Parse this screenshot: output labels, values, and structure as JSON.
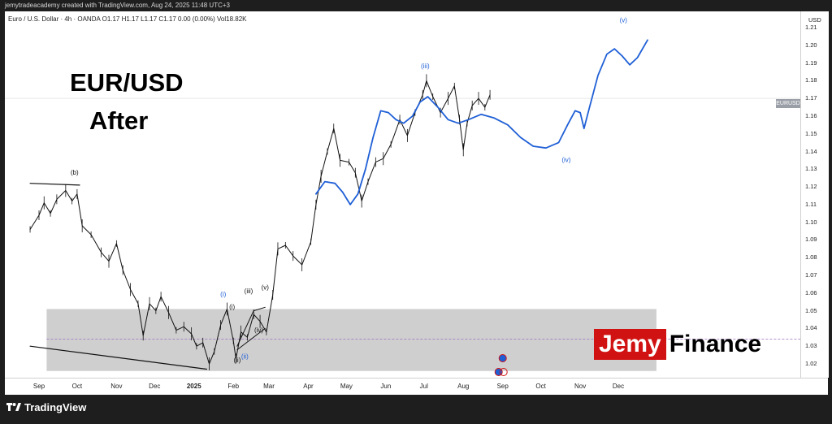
{
  "caption": "jemytradeacademy created with TradingView.com, Aug 24, 2025 11:48 UTC+3",
  "symbol_line": "Euro / U.S. Dollar · 4h · OANDA  O1.17  H1.17  L1.17  C1.17  0.00 (0.00%)  Vol18.82K",
  "headline": {
    "pair": "EUR/USD",
    "word": "After"
  },
  "brand": {
    "left": "Jemy",
    "right": "Finance"
  },
  "platform_name": "TradingView",
  "symbol_tag": "EURUSD",
  "colors": {
    "wave_blue": "#1f5fd6",
    "price_black": "#111111",
    "zone_gray": "#cfcfcf",
    "brand_red": "#d11212"
  },
  "chart_data": {
    "type": "line",
    "price_axis_unit": "USD",
    "ylim": [
      1.015,
      1.22
    ],
    "y_ticks": [
      "1.21",
      "1.20",
      "1.19",
      "1.18",
      "1.17",
      "1.16",
      "1.15",
      "1.14",
      "1.13",
      "1.12",
      "1.11",
      "1.10",
      "1.09",
      "1.08",
      "1.07",
      "1.06",
      "1.05",
      "1.04",
      "1.03",
      "1.02"
    ],
    "x_ticks": [
      "Sep",
      "Oct",
      "Nov",
      "Dec",
      "2025",
      "Feb",
      "Mar",
      "Apr",
      "May",
      "Jun",
      "Jul",
      "Aug",
      "Sep",
      "Oct",
      "Nov",
      "Dec"
    ],
    "x_ticks_bold": [
      "2025"
    ],
    "series": [
      {
        "role": "price",
        "points": [
          [
            "2024-08-25",
            1.096
          ],
          [
            "2024-09-01",
            1.104
          ],
          [
            "2024-09-05",
            1.111
          ],
          [
            "2024-09-10",
            1.105
          ],
          [
            "2024-09-15",
            1.113
          ],
          [
            "2024-09-22",
            1.118
          ],
          [
            "2024-09-27",
            1.112
          ],
          [
            "2024-10-01",
            1.116
          ],
          [
            "2024-10-05",
            1.098
          ],
          [
            "2024-10-12",
            1.093
          ],
          [
            "2024-10-20",
            1.083
          ],
          [
            "2024-10-26",
            1.078
          ],
          [
            "2024-11-01",
            1.088
          ],
          [
            "2024-11-06",
            1.073
          ],
          [
            "2024-11-12",
            1.062
          ],
          [
            "2024-11-18",
            1.054
          ],
          [
            "2024-11-22",
            1.036
          ],
          [
            "2024-11-27",
            1.054
          ],
          [
            "2024-12-02",
            1.05
          ],
          [
            "2024-12-06",
            1.058
          ],
          [
            "2024-12-12",
            1.049
          ],
          [
            "2024-12-18",
            1.039
          ],
          [
            "2024-12-24",
            1.041
          ],
          [
            "2024-12-30",
            1.037
          ],
          [
            "2025-01-03",
            1.03
          ],
          [
            "2025-01-08",
            1.032
          ],
          [
            "2025-01-13",
            1.02
          ],
          [
            "2025-01-17",
            1.027
          ],
          [
            "2025-01-22",
            1.042
          ],
          [
            "2025-01-27",
            1.051
          ],
          [
            "2025-02-01",
            1.033
          ],
          [
            "2025-02-03",
            1.023
          ],
          [
            "2025-02-07",
            1.038
          ],
          [
            "2025-02-12",
            1.035
          ],
          [
            "2025-02-17",
            1.048
          ],
          [
            "2025-02-22",
            1.044
          ],
          [
            "2025-02-27",
            1.038
          ],
          [
            "2025-03-04",
            1.059
          ],
          [
            "2025-03-08",
            1.085
          ],
          [
            "2025-03-14",
            1.087
          ],
          [
            "2025-03-20",
            1.081
          ],
          [
            "2025-03-27",
            1.076
          ],
          [
            "2025-04-03",
            1.089
          ],
          [
            "2025-04-07",
            1.11
          ],
          [
            "2025-04-11",
            1.126
          ],
          [
            "2025-04-16",
            1.14
          ],
          [
            "2025-04-21",
            1.153
          ],
          [
            "2025-04-26",
            1.135
          ],
          [
            "2025-05-03",
            1.134
          ],
          [
            "2025-05-08",
            1.128
          ],
          [
            "2025-05-13",
            1.112
          ],
          [
            "2025-05-18",
            1.123
          ],
          [
            "2025-05-24",
            1.134
          ],
          [
            "2025-05-30",
            1.136
          ],
          [
            "2025-06-05",
            1.144
          ],
          [
            "2025-06-12",
            1.158
          ],
          [
            "2025-06-18",
            1.149
          ],
          [
            "2025-06-24",
            1.162
          ],
          [
            "2025-06-30",
            1.172
          ],
          [
            "2025-07-03",
            1.18
          ],
          [
            "2025-07-08",
            1.171
          ],
          [
            "2025-07-14",
            1.162
          ],
          [
            "2025-07-20",
            1.17
          ],
          [
            "2025-07-25",
            1.177
          ],
          [
            "2025-07-29",
            1.158
          ],
          [
            "2025-08-01",
            1.141
          ],
          [
            "2025-08-04",
            1.156
          ],
          [
            "2025-08-08",
            1.166
          ],
          [
            "2025-08-13",
            1.17
          ],
          [
            "2025-08-18",
            1.165
          ],
          [
            "2025-08-22",
            1.172
          ]
        ]
      },
      {
        "role": "projection",
        "points": [
          [
            "2025-04-07",
            1.116
          ],
          [
            "2025-04-14",
            1.123
          ],
          [
            "2025-04-22",
            1.122
          ],
          [
            "2025-04-28",
            1.117
          ],
          [
            "2025-05-04",
            1.11
          ],
          [
            "2025-05-10",
            1.116
          ],
          [
            "2025-05-16",
            1.13
          ],
          [
            "2025-05-22",
            1.148
          ],
          [
            "2025-05-28",
            1.163
          ],
          [
            "2025-06-03",
            1.162
          ],
          [
            "2025-06-09",
            1.158
          ],
          [
            "2025-06-15",
            1.156
          ],
          [
            "2025-06-22",
            1.16
          ],
          [
            "2025-06-28",
            1.168
          ],
          [
            "2025-07-04",
            1.171
          ],
          [
            "2025-07-12",
            1.165
          ],
          [
            "2025-07-20",
            1.158
          ],
          [
            "2025-07-28",
            1.156
          ],
          [
            "2025-08-05",
            1.158
          ],
          [
            "2025-08-15",
            1.161
          ],
          [
            "2025-08-25",
            1.159
          ],
          [
            "2025-09-05",
            1.155
          ],
          [
            "2025-09-15",
            1.148
          ],
          [
            "2025-09-25",
            1.143
          ],
          [
            "2025-10-05",
            1.142
          ],
          [
            "2025-10-15",
            1.145
          ],
          [
            "2025-10-22",
            1.155
          ],
          [
            "2025-10-28",
            1.163
          ],
          [
            "2025-11-01",
            1.162
          ],
          [
            "2025-11-04",
            1.153
          ],
          [
            "2025-11-08",
            1.164
          ],
          [
            "2025-11-15",
            1.183
          ],
          [
            "2025-11-22",
            1.195
          ],
          [
            "2025-11-28",
            1.198
          ],
          [
            "2025-12-04",
            1.194
          ],
          [
            "2025-12-10",
            1.189
          ],
          [
            "2025-12-16",
            1.193
          ],
          [
            "2025-12-24",
            1.203
          ]
        ]
      },
      {
        "role": "upper-trendline",
        "points": [
          [
            "2024-08-25",
            1.122
          ],
          [
            "2024-10-03",
            1.121
          ]
        ]
      },
      {
        "role": "lower-trendline",
        "points": [
          [
            "2024-08-25",
            1.03
          ],
          [
            "2025-01-11",
            1.017
          ]
        ]
      },
      {
        "role": "wedge-upper",
        "points": [
          [
            "2025-02-04",
            1.03
          ],
          [
            "2025-02-17",
            1.05
          ],
          [
            "2025-02-26",
            1.052
          ]
        ]
      },
      {
        "role": "wedge-lower",
        "points": [
          [
            "2025-02-04",
            1.028
          ],
          [
            "2025-02-26",
            1.04
          ]
        ]
      }
    ],
    "zone": {
      "from": "2024-09-07",
      "to": "2025-12-31",
      "low": 1.016,
      "high": 1.051,
      "midline": 1.034
    },
    "wave_labels": [
      {
        "text": "(b)",
        "date": "2024-09-29",
        "value": 1.127,
        "color": "#111111"
      },
      {
        "text": "(i)",
        "date": "2025-01-24",
        "value": 1.058,
        "color": "#1f5fd6"
      },
      {
        "text": "(ii)",
        "date": "2025-02-10",
        "value": 1.023,
        "color": "#1f5fd6"
      },
      {
        "text": "(iii)",
        "date": "2025-07-02",
        "value": 1.187,
        "color": "#1f5fd6"
      },
      {
        "text": "(iv)",
        "date": "2025-10-21",
        "value": 1.134,
        "color": "#1f5fd6"
      },
      {
        "text": "(v)",
        "date": "2025-12-05",
        "value": 1.213,
        "color": "#1f5fd6"
      },
      {
        "text": "(i)",
        "date": "2025-01-31",
        "value": 1.051,
        "color": "#111111"
      },
      {
        "text": "(ii)",
        "date": "2025-02-04",
        "value": 1.021,
        "color": "#111111"
      },
      {
        "text": "(iii)",
        "date": "2025-02-13",
        "value": 1.06,
        "color": "#111111"
      },
      {
        "text": "(iv)",
        "date": "2025-02-21",
        "value": 1.038,
        "color": "#111111"
      },
      {
        "text": "(v)",
        "date": "2025-02-26",
        "value": 1.062,
        "color": "#111111"
      }
    ],
    "last_price": 1.17
  }
}
